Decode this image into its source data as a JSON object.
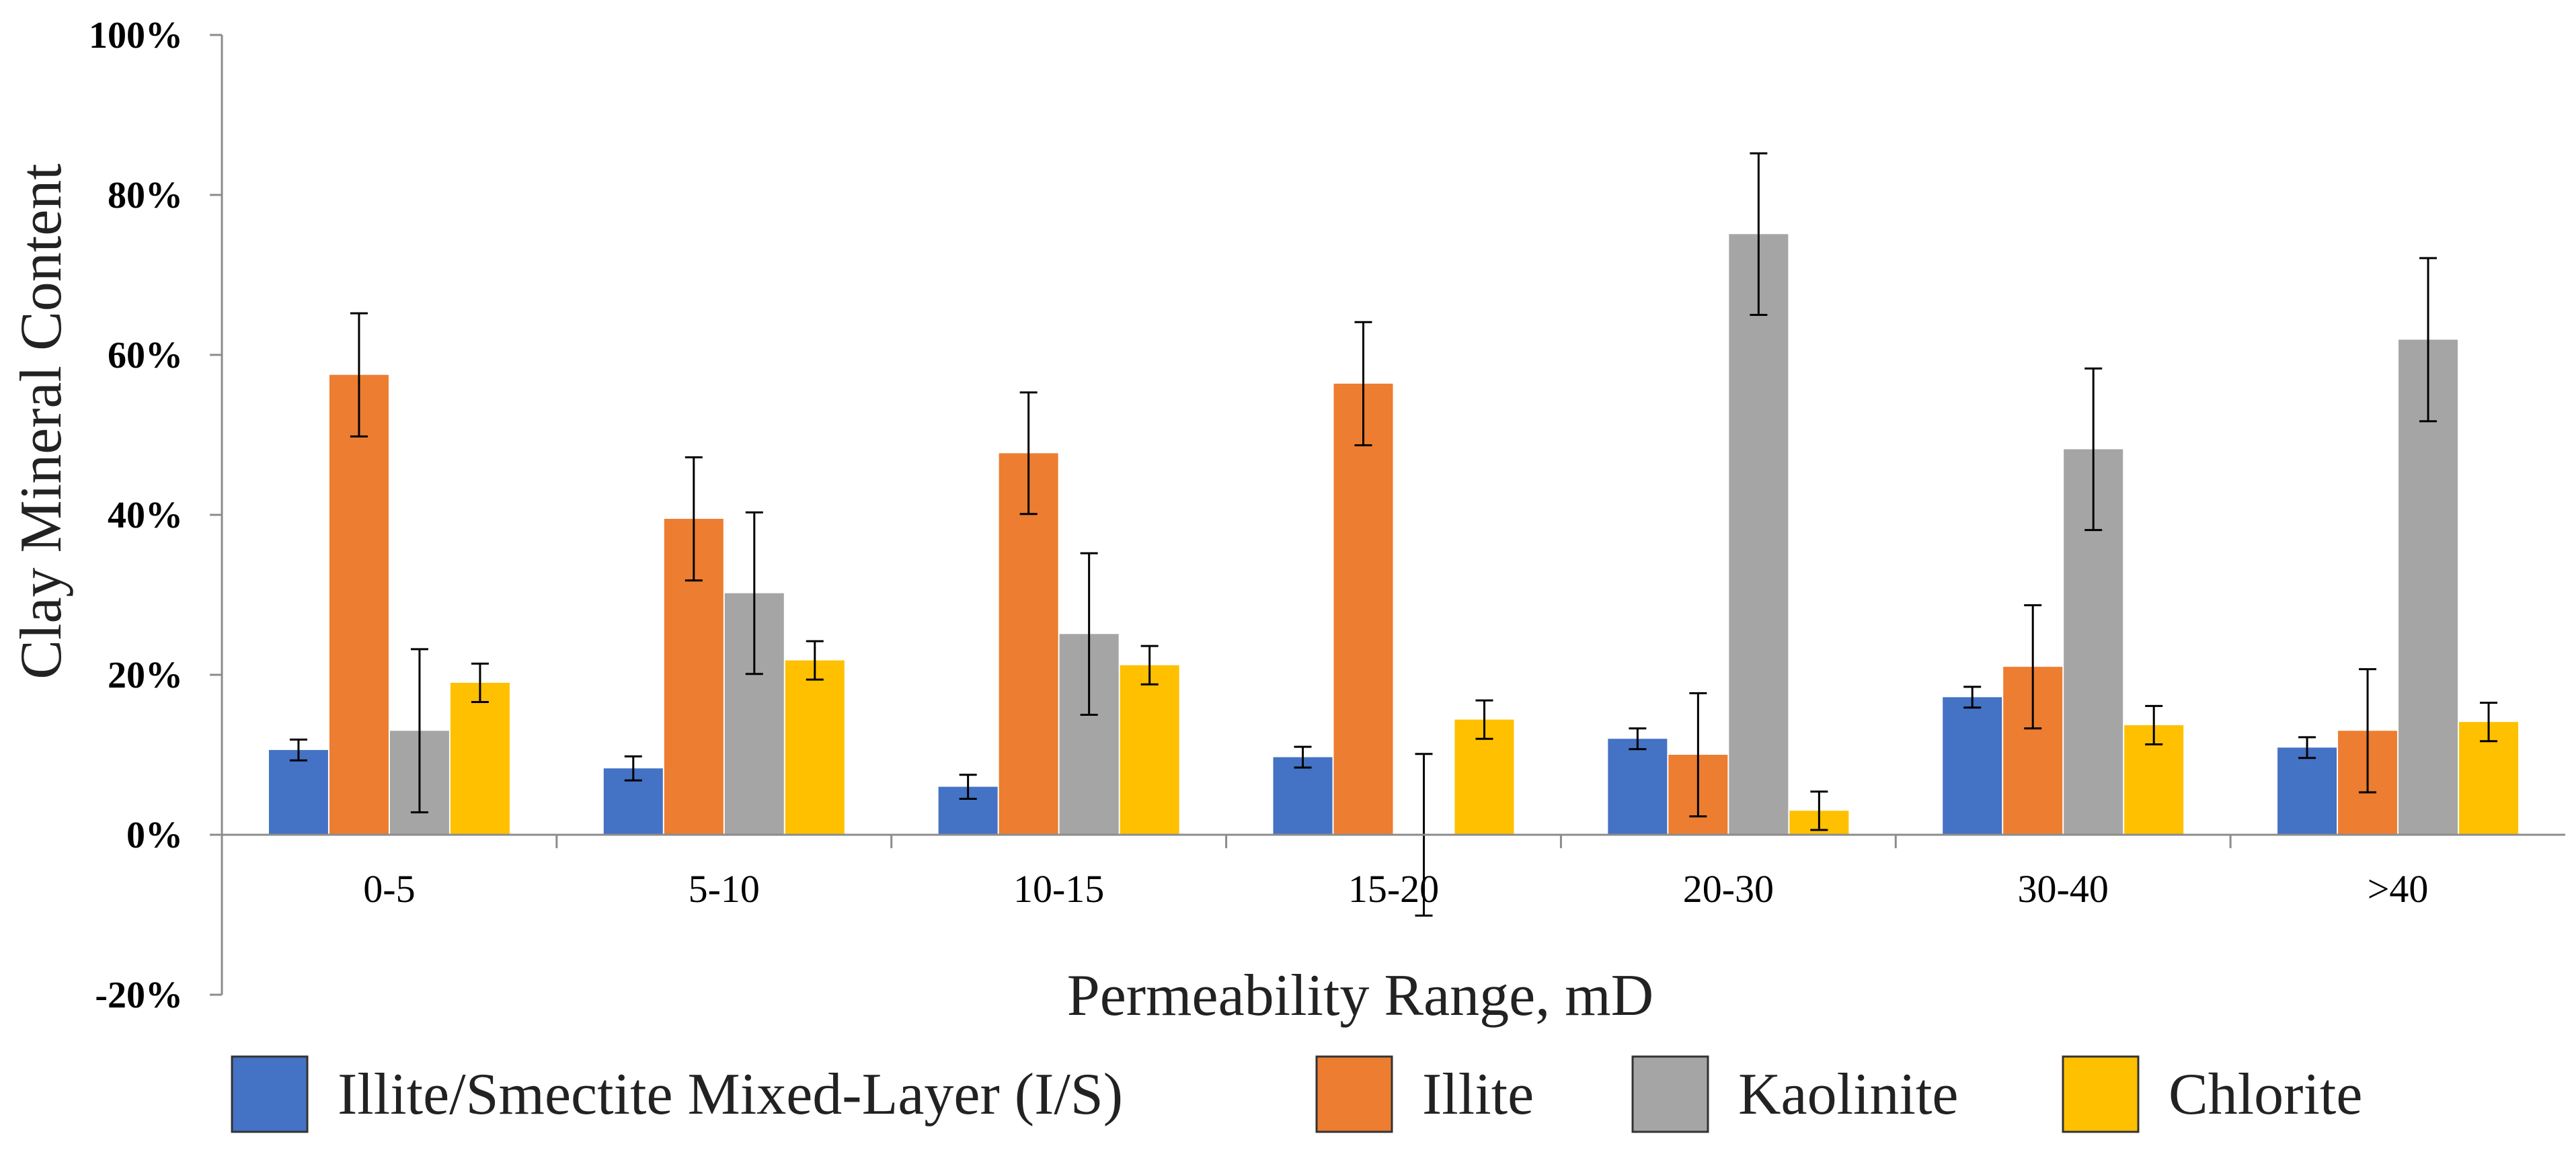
{
  "chart_data": {
    "type": "bar",
    "title": "",
    "xlabel": "Permeability Range, mD",
    "ylabel": "Clay Mineral Content",
    "ylim": [
      -20,
      100
    ],
    "yticks": [
      -20,
      0,
      20,
      40,
      60,
      80,
      100
    ],
    "ytick_labels": [
      "-20%",
      "0%",
      "20%",
      "40%",
      "60%",
      "80%",
      "100%"
    ],
    "categories": [
      "0-5",
      "5-10",
      "10-15",
      "15-20",
      "20-30",
      "30-40",
      ">40"
    ],
    "legend_position": "bottom",
    "series": [
      {
        "name": "Illite/Smectite Mixed-Layer (I/S)",
        "color": "#4472C4",
        "values": [
          10.6,
          8.3,
          6.0,
          9.7,
          12.0,
          17.2,
          10.9
        ],
        "errors": [
          1.3,
          1.5,
          1.5,
          1.3,
          1.3,
          1.3,
          1.3
        ]
      },
      {
        "name": "Illite",
        "color": "#ED7D31",
        "values": [
          57.5,
          39.5,
          47.7,
          56.4,
          10.0,
          21.0,
          13.0
        ],
        "errors": [
          7.7,
          7.7,
          7.6,
          7.7,
          7.7,
          7.7,
          7.7
        ]
      },
      {
        "name": "Kaolinite",
        "color": "#A5A5A5",
        "values": [
          13.0,
          30.2,
          25.1,
          0.0,
          75.1,
          48.2,
          61.9
        ],
        "errors": [
          10.2,
          10.1,
          10.1,
          10.1,
          10.1,
          10.1,
          10.2
        ]
      },
      {
        "name": "Chlorite",
        "color": "#FFC000",
        "values": [
          19.0,
          21.8,
          21.2,
          14.4,
          3.0,
          13.7,
          14.1
        ],
        "errors": [
          2.4,
          2.4,
          2.4,
          2.4,
          2.4,
          2.4,
          2.4
        ]
      }
    ]
  }
}
